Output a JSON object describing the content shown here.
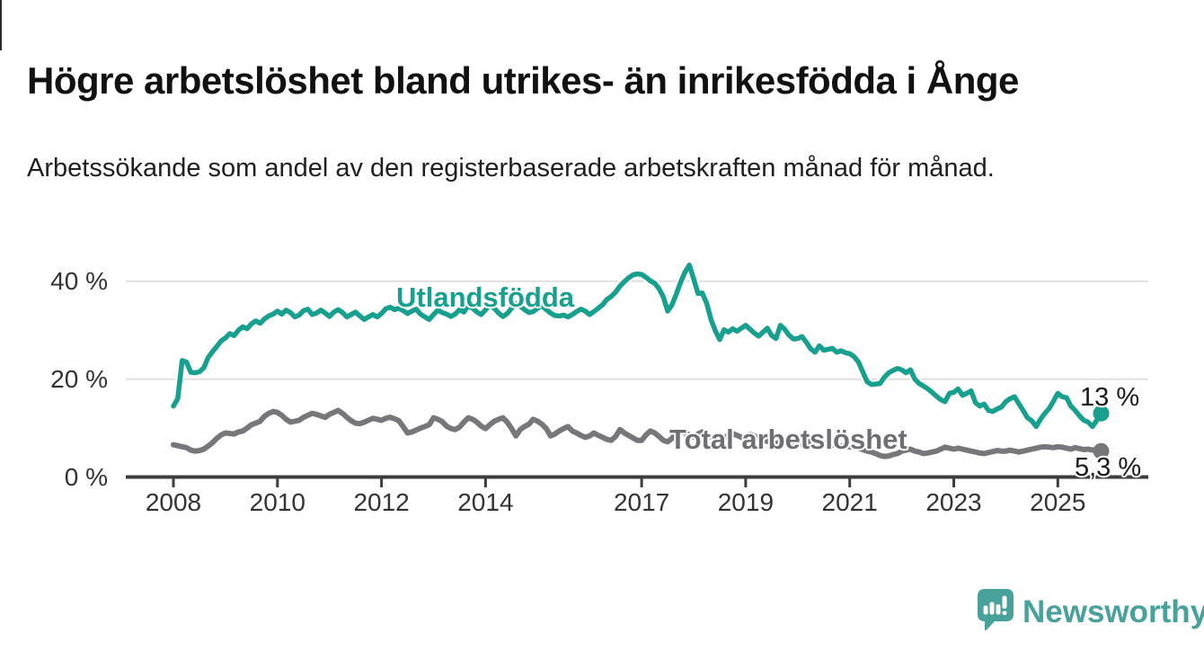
{
  "chart_data": {
    "type": "line",
    "title": "Högre arbetslöshet bland utrikes- än inrikesfödda i Ånge",
    "subtitle": "Arbetssökande som andel av den registerbaserade arbetskraften månad för månad.",
    "x_unit": "month",
    "x_range": {
      "start": "2008-01",
      "end": "2025-11"
    },
    "x_ticks": [
      2008,
      2010,
      2012,
      2014,
      2017,
      2019,
      2021,
      2023,
      2025
    ],
    "y_ticks": [
      {
        "value": 40,
        "label": "40 %"
      },
      {
        "value": 20,
        "label": "20 %"
      },
      {
        "value": 0,
        "label": "0 %"
      }
    ],
    "ylim": [
      0,
      45
    ],
    "grid": "horizontal",
    "colors": {
      "axis": "#3d3d3d",
      "gridline": "#dadada",
      "tick_text": "#333333"
    },
    "series": [
      {
        "name": "Utlandsfödda",
        "label_annotation": "Utlandsfödda",
        "end_label": "13 %",
        "end_value": 13,
        "color": "#17a08d",
        "values": {
          "2008": [
            14.5,
            16.0,
            23.8,
            23.5,
            21.4,
            21.3,
            21.5,
            22.3,
            24.4,
            25.6,
            26.7,
            27.8
          ],
          "2009": [
            28.4,
            29.3,
            28.9,
            30.0,
            30.7,
            30.3,
            31.3,
            31.9,
            31.4,
            32.3,
            32.9,
            33.3
          ],
          "2010": [
            33.9,
            33.3,
            34.1,
            33.6,
            32.7,
            33.1,
            34.0,
            34.3,
            33.2,
            33.5,
            34.1,
            33.5
          ],
          "2011": [
            32.8,
            33.7,
            34.2,
            33.6,
            32.7,
            33.2,
            33.7,
            32.9,
            32.2,
            32.7,
            33.2,
            32.7
          ],
          "2012": [
            33.4,
            34.4,
            34.7,
            34.2,
            34.5,
            34.0,
            33.4,
            33.9,
            34.3,
            33.3,
            32.7,
            32.2
          ],
          "2013": [
            33.2,
            34.1,
            33.6,
            33.3,
            32.8,
            33.3,
            34.2,
            33.7,
            35.0,
            34.5,
            33.7,
            33.2
          ],
          "2014": [
            34.2,
            35.1,
            34.5,
            33.5,
            32.8,
            33.4,
            34.5,
            35.4,
            34.9,
            34.2,
            33.6,
            33.8
          ],
          "2015": [
            34.5,
            35.0,
            34.2,
            33.5,
            33.0,
            32.9,
            33.1,
            32.7,
            33.2,
            33.8,
            34.3,
            33.9
          ],
          "2016": [
            33.2,
            33.8,
            34.5,
            35.2,
            36.3,
            36.9,
            37.8,
            39.0,
            39.9,
            40.7,
            41.3,
            41.5
          ],
          "2017": [
            41.4,
            40.8,
            40.1,
            39.6,
            38.5,
            36.8,
            33.9,
            35.2,
            37.4,
            39.8,
            41.9,
            43.3
          ],
          "2018": [
            40.5,
            37.5,
            37.6,
            35.5,
            32.2,
            29.9,
            28.1,
            30.1,
            29.6,
            30.3,
            29.8,
            30.4
          ],
          "2019": [
            31.0,
            30.2,
            29.4,
            28.8,
            29.6,
            30.4,
            28.9,
            28.3,
            31.0,
            30.2,
            29.0,
            28.2
          ],
          "2020": [
            28.3,
            28.7,
            27.5,
            26.2,
            25.5,
            26.8,
            25.9,
            26.1,
            26.3,
            25.5,
            25.8,
            25.4
          ],
          "2021": [
            25.2,
            24.6,
            23.5,
            21.5,
            19.5,
            18.9,
            19.0,
            19.1,
            20.4,
            21.3,
            21.8,
            22.2
          ],
          "2022": [
            21.9,
            21.3,
            21.9,
            20.0,
            19.1,
            18.6,
            18.0,
            17.3,
            16.5,
            15.8,
            15.4,
            17.1
          ],
          "2023": [
            17.3,
            18.0,
            16.7,
            17.1,
            17.6,
            15.2,
            14.5,
            14.9,
            13.6,
            13.4,
            13.9,
            14.3
          ],
          "2024": [
            15.4,
            16.0,
            16.4,
            15.0,
            13.6,
            12.1,
            11.5,
            10.3,
            11.8,
            13.0,
            14.0,
            15.5
          ],
          "2025": [
            17.1,
            16.4,
            16.2,
            14.5,
            13.6,
            12.5,
            11.6,
            11.2,
            10.3,
            11.6,
            13.0
          ]
        }
      },
      {
        "name": "Total arbetslöshet",
        "label_annotation": "Total arbetslöshet",
        "end_label": "5,3 %",
        "end_value": 5.3,
        "color": "#77777b",
        "values": {
          "2008": [
            6.6,
            6.4,
            6.2,
            6.0,
            5.5,
            5.3,
            5.4,
            5.7,
            6.3,
            7.0,
            7.9,
            8.6
          ],
          "2009": [
            9.0,
            8.9,
            8.8,
            9.2,
            9.4,
            10.0,
            10.7,
            11.0,
            11.4,
            12.4,
            13.0,
            13.4
          ],
          "2010": [
            13.2,
            12.6,
            11.8,
            11.2,
            11.4,
            11.6,
            12.2,
            12.6,
            13.0,
            12.8,
            12.5,
            12.2
          ],
          "2011": [
            12.8,
            13.2,
            13.6,
            13.0,
            12.2,
            11.5,
            11.0,
            10.9,
            11.2,
            11.6,
            12.0,
            11.8
          ],
          "2012": [
            11.6,
            12.0,
            12.2,
            11.9,
            11.5,
            10.3,
            9.0,
            9.2,
            9.6,
            10.0,
            10.3,
            10.7
          ],
          "2013": [
            12.1,
            11.8,
            11.3,
            10.4,
            9.9,
            9.7,
            10.2,
            11.2,
            12.1,
            11.8,
            11.2,
            10.4
          ],
          "2014": [
            9.9,
            10.7,
            11.4,
            11.8,
            12.1,
            11.2,
            9.9,
            8.4,
            9.7,
            10.3,
            10.8,
            11.8
          ],
          "2015": [
            11.4,
            10.8,
            9.9,
            8.4,
            8.8,
            9.4,
            9.9,
            10.3,
            9.4,
            9.0,
            8.5,
            8.1
          ],
          "2016": [
            8.4,
            9.0,
            8.5,
            8.1,
            7.7,
            7.5,
            8.3,
            9.7,
            9.0,
            8.5,
            8.0,
            7.5
          ],
          "2017": [
            7.5,
            8.6,
            9.4,
            9.0,
            8.3,
            7.5,
            7.2,
            7.9,
            9.2,
            9.4,
            9.0,
            8.6
          ],
          "2018": [
            8.2,
            8.8,
            9.2,
            8.8,
            8.2,
            7.8,
            7.5,
            7.9,
            8.6,
            8.9,
            8.5,
            8.1
          ],
          "2019": [
            8.3,
            8.7,
            8.4,
            8.0,
            7.6,
            7.3,
            7.0,
            6.8,
            7.2,
            7.0,
            6.8,
            6.6
          ],
          "2020": [
            6.6,
            6.7,
            7.0,
            7.3,
            7.2,
            7.1,
            6.9,
            6.7,
            6.6,
            6.4,
            6.3,
            6.2
          ],
          "2021": [
            6.2,
            6.1,
            5.9,
            5.6,
            5.3,
            5.1,
            4.8,
            4.4,
            4.2,
            4.3,
            4.6,
            4.8
          ],
          "2022": [
            5.3,
            5.5,
            5.7,
            5.3,
            5.1,
            4.8,
            4.9,
            5.1,
            5.3,
            5.7,
            6.1,
            5.9
          ],
          "2023": [
            5.7,
            5.9,
            5.7,
            5.5,
            5.3,
            5.1,
            4.9,
            4.8,
            5.0,
            5.2,
            5.4,
            5.3
          ],
          "2024": [
            5.3,
            5.5,
            5.3,
            5.1,
            5.3,
            5.5,
            5.7,
            5.9,
            6.1,
            6.2,
            6.1,
            6.0
          ],
          "2025": [
            6.2,
            6.1,
            5.9,
            5.7,
            6.0,
            5.8,
            5.6,
            5.7,
            5.5,
            5.6,
            5.3
          ]
        }
      }
    ]
  },
  "branding": {
    "logo_text": "Newsworthy",
    "logo_color": "#48a19a",
    "logo_icon": "bar-chart-speech-bubble-icon"
  }
}
